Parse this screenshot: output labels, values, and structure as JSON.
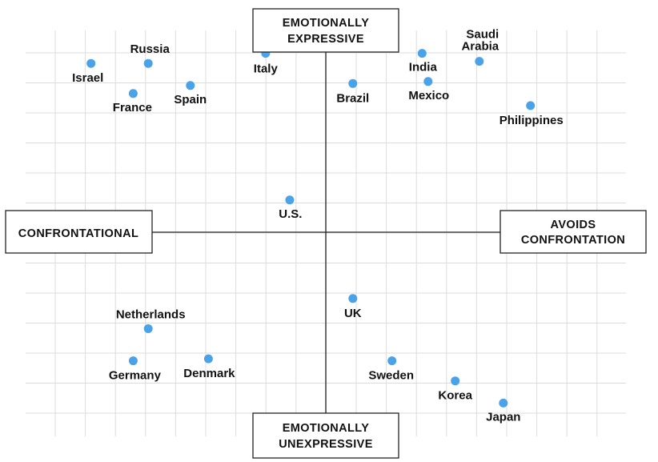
{
  "chart_data": {
    "type": "scatter",
    "title": "",
    "point_color": "#4aa3e8",
    "xlim": [
      -10,
      10
    ],
    "ylim": [
      -10,
      10
    ],
    "grid": true,
    "axes": {
      "top": {
        "lines": [
          "EMOTIONALLY",
          "EXPRESSIVE"
        ]
      },
      "bottom": {
        "lines": [
          "EMOTIONALLY",
          "UNEXPRESSIVE"
        ]
      },
      "left": {
        "lines": [
          "CONFRONTATIONAL"
        ]
      },
      "right": {
        "lines": [
          "AVOIDS",
          "CONFRONTATION"
        ]
      }
    },
    "points": [
      {
        "name": "Israel",
        "x": -7.8,
        "y": 8.4
      },
      {
        "name": "Russia",
        "x": -5.9,
        "y": 8.4
      },
      {
        "name": "France",
        "x": -6.4,
        "y": 6.9
      },
      {
        "name": "Spain",
        "x": -4.5,
        "y": 7.3
      },
      {
        "name": "Italy",
        "x": -2.0,
        "y": 8.9
      },
      {
        "name": "Brazil",
        "x": 0.9,
        "y": 7.4
      },
      {
        "name": "India",
        "x": 3.2,
        "y": 8.9
      },
      {
        "name": "Mexico",
        "x": 3.4,
        "y": 7.5
      },
      {
        "name": "Saudi Arabia",
        "x": 5.1,
        "y": 8.5
      },
      {
        "name": "Philippines",
        "x": 6.8,
        "y": 6.3
      },
      {
        "name": "U.S.",
        "x": -1.2,
        "y": 1.6
      },
      {
        "name": "UK",
        "x": 0.9,
        "y": -3.3
      },
      {
        "name": "Netherlands",
        "x": -5.9,
        "y": -4.8
      },
      {
        "name": "Germany",
        "x": -6.4,
        "y": -6.4
      },
      {
        "name": "Denmark",
        "x": -3.9,
        "y": -6.3
      },
      {
        "name": "Sweden",
        "x": 2.2,
        "y": -6.4
      },
      {
        "name": "Korea",
        "x": 4.3,
        "y": -7.4
      },
      {
        "name": "Japan",
        "x": 5.9,
        "y": -8.5
      }
    ]
  }
}
